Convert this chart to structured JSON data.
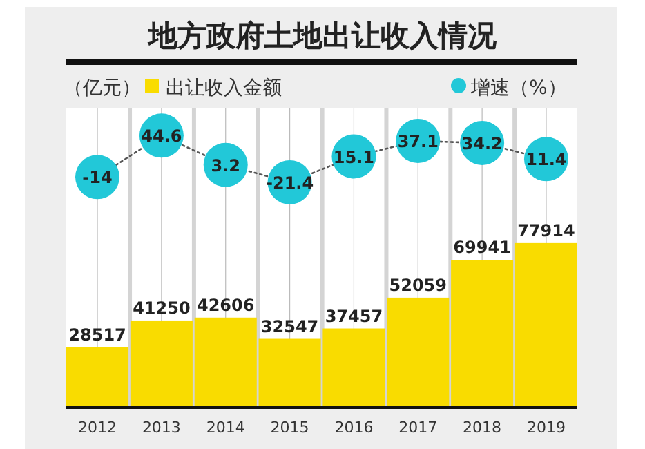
{
  "chart_data": {
    "type": "bar",
    "title": "地方政府土地出让收入情况",
    "ylabel": "（亿元）",
    "categories": [
      "2012",
      "2013",
      "2014",
      "2015",
      "2016",
      "2017",
      "2018",
      "2019"
    ],
    "series": [
      {
        "name": "出让收入金额",
        "color": "#f9dc00",
        "values": [
          28517,
          41250,
          42606,
          32547,
          37457,
          52059,
          69941,
          77914
        ]
      },
      {
        "name": "增速（%）",
        "type": "line",
        "axis": "y2",
        "color": "#22c8d8",
        "values": [
          -14,
          44.6,
          3.2,
          -21.4,
          15.1,
          37.1,
          34.2,
          11.4
        ],
        "marker": "circle",
        "line_style": "dotted"
      }
    ],
    "ylim": [
      0,
      142000
    ],
    "y2lim": [
      -340,
      84
    ],
    "tick_labels": "x",
    "data_labels": true,
    "legend": "top",
    "grid": "x"
  }
}
